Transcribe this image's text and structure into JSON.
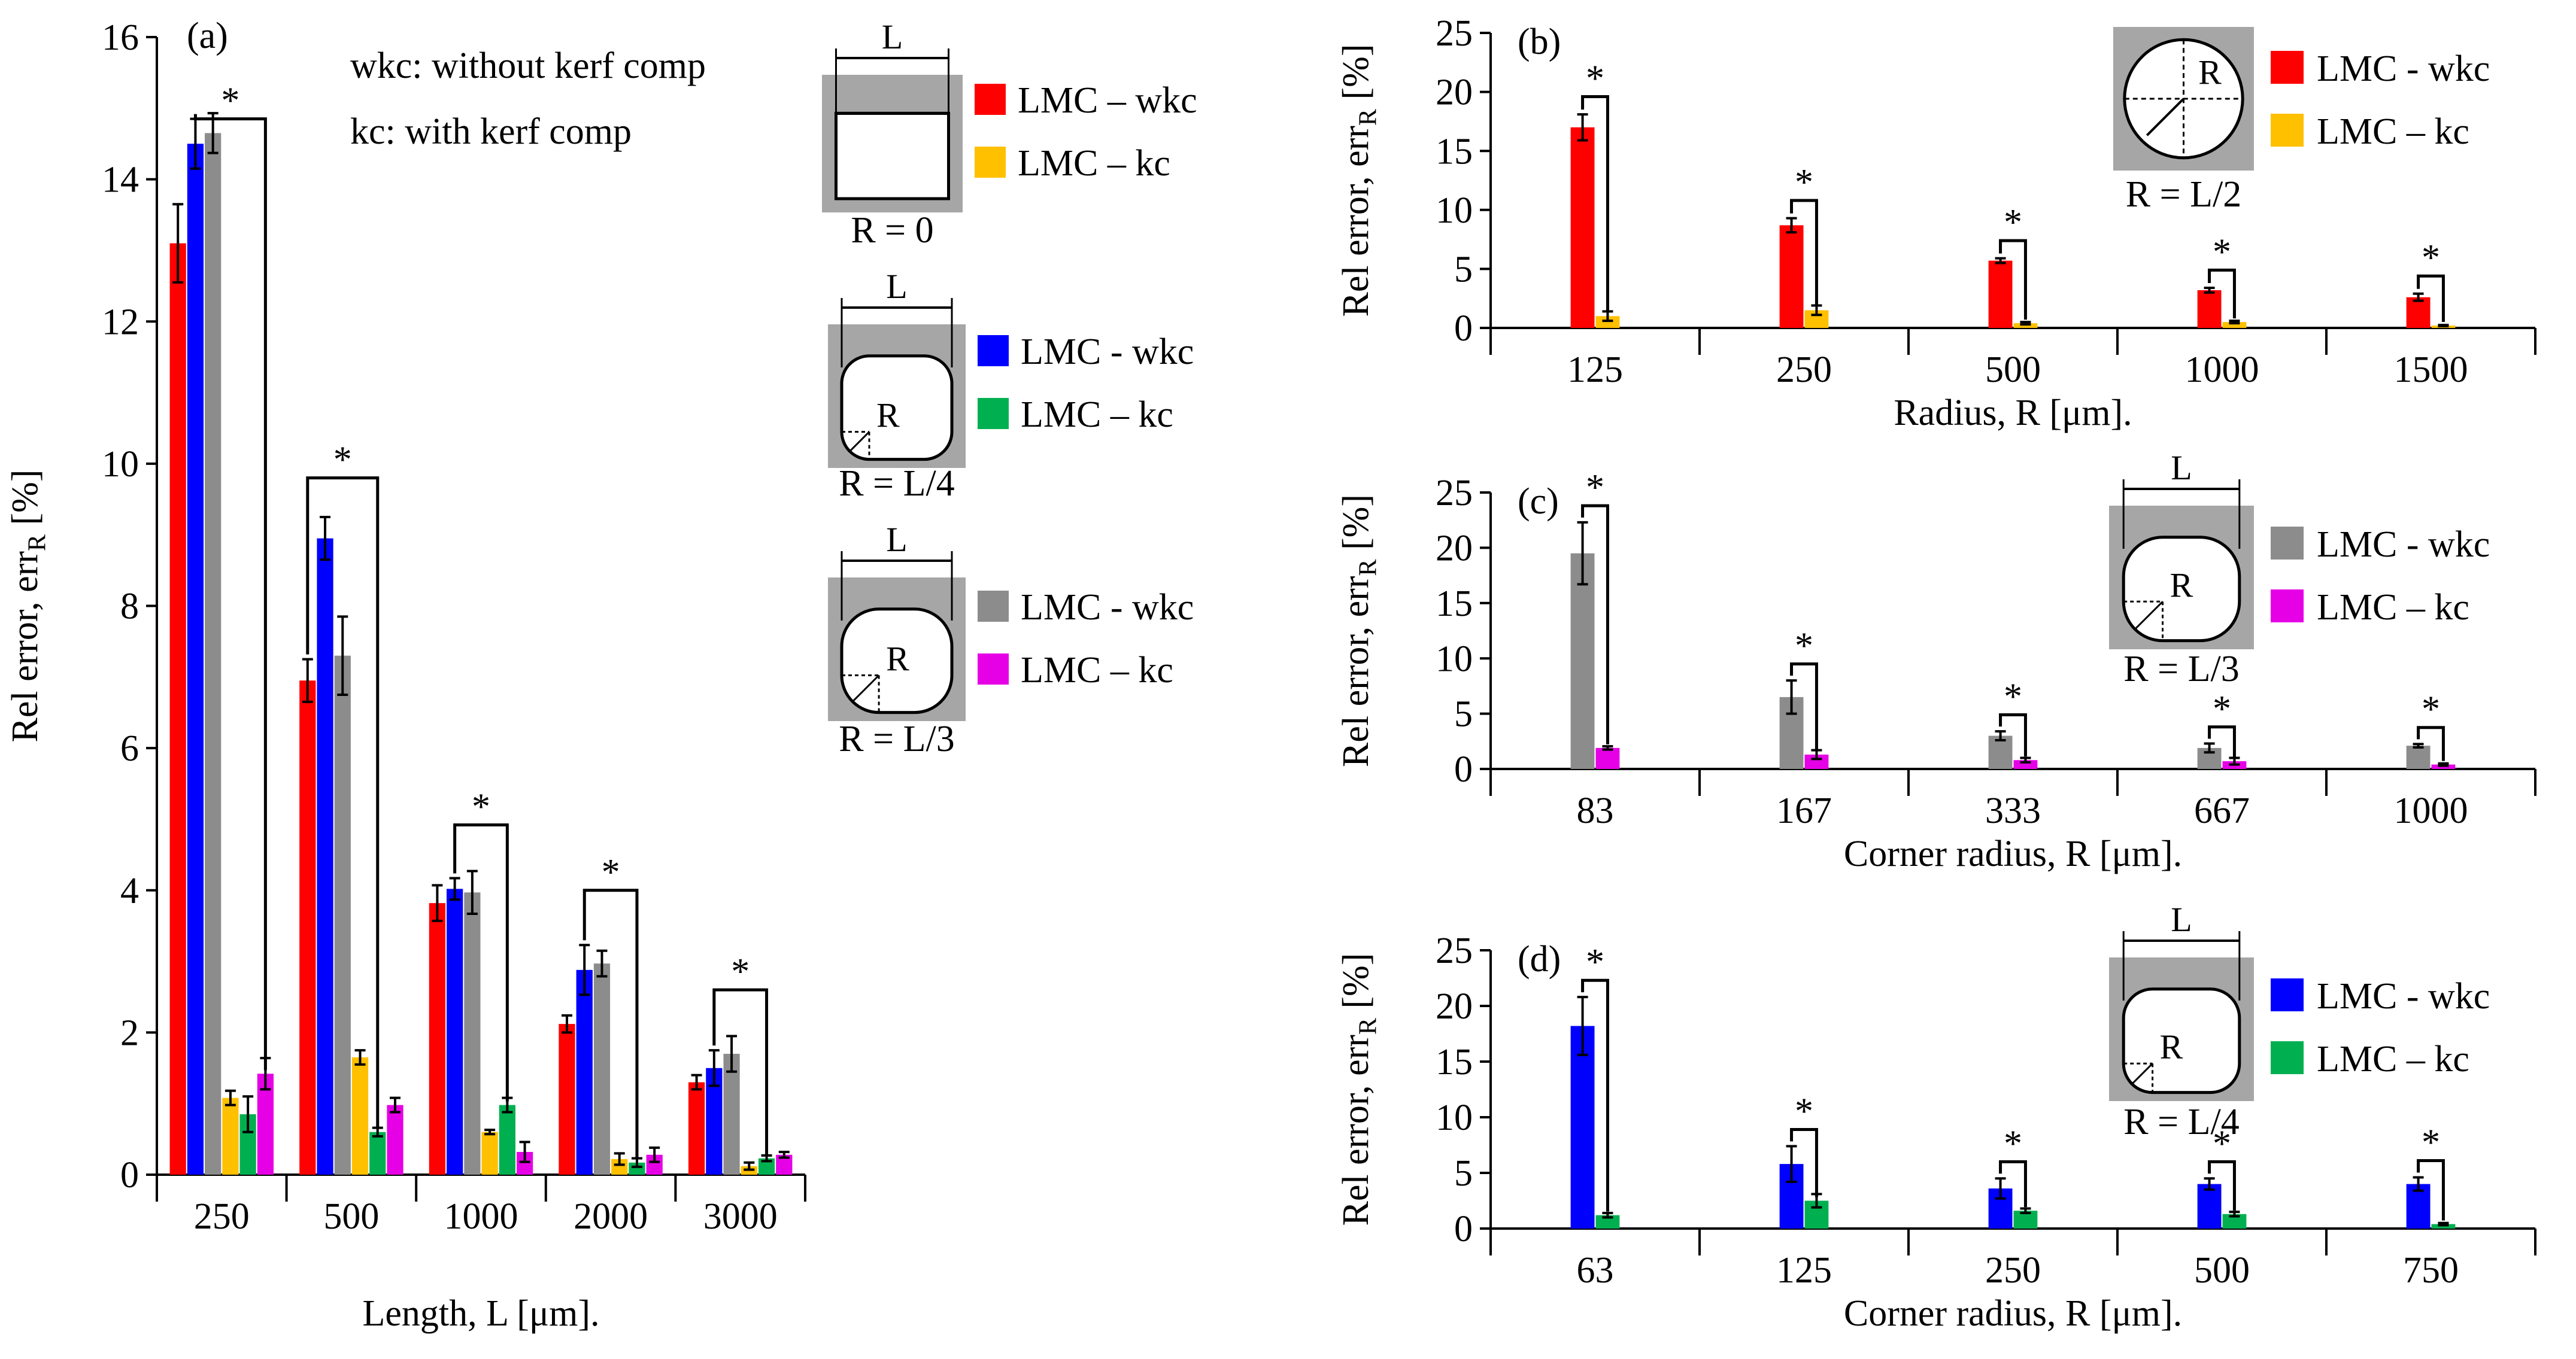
{
  "colors": {
    "red": "#ff0000",
    "blue": "#0000ff",
    "gray": "#8c8c8c",
    "yellow": "#ffc000",
    "green": "#00b050",
    "magenta": "#e600e6",
    "frame": "#a6a6a6"
  },
  "significance_marker": "*",
  "chart_data": [
    {
      "id": "a",
      "panel_label": "(a)",
      "type": "bar",
      "xlabel": "Length, L [μm].",
      "ylabel": "Rel error, err",
      "ylabel_sub": "R",
      "ylabel_unit": " [%]",
      "ylim": [
        0,
        16
      ],
      "yticks": [
        "0",
        "2",
        "4",
        "6",
        "8",
        "10",
        "12",
        "14",
        "16"
      ],
      "categories": [
        "250",
        "500",
        "1000",
        "2000",
        "3000"
      ],
      "notes": [
        "wkc: without kerf comp",
        "kc: with kerf comp"
      ],
      "series": [
        {
          "name": "LMC – wkc",
          "color": "red",
          "values": [
            13.1,
            6.95,
            3.82,
            2.12,
            1.3
          ],
          "errors": [
            0.55,
            0.3,
            0.25,
            0.12,
            0.1
          ]
        },
        {
          "name": "LMC - wkc",
          "color": "blue",
          "values": [
            14.5,
            8.95,
            4.02,
            2.88,
            1.5
          ],
          "errors": [
            0.35,
            0.3,
            0.15,
            0.35,
            0.25
          ]
        },
        {
          "name": "LMC - wkc",
          "color": "gray",
          "values": [
            14.65,
            7.3,
            3.97,
            2.97,
            1.7
          ],
          "errors": [
            0.28,
            0.55,
            0.3,
            0.18,
            0.25
          ]
        },
        {
          "name": "LMC – kc",
          "color": "yellow",
          "values": [
            1.08,
            1.65,
            0.6,
            0.22,
            0.12
          ],
          "errors": [
            0.1,
            0.1,
            0.03,
            0.08,
            0.05
          ]
        },
        {
          "name": "LMC – kc",
          "color": "green",
          "values": [
            0.85,
            0.6,
            0.98,
            0.17,
            0.23
          ],
          "errors": [
            0.25,
            0.06,
            0.1,
            0.06,
            0.04
          ]
        },
        {
          "name": "LMC – kc",
          "color": "magenta",
          "values": [
            1.42,
            0.98,
            0.32,
            0.28,
            0.28
          ],
          "errors": [
            0.22,
            0.1,
            0.14,
            0.1,
            0.04
          ]
        }
      ],
      "legend_groups": [
        {
          "caption": "R = 0",
          "shape": "open",
          "entries": [
            {
              "label": "LMC – wkc",
              "color": "red"
            },
            {
              "label": "LMC – kc",
              "color": "yellow"
            }
          ]
        },
        {
          "caption": "R = L/4",
          "shape": "rounded4",
          "entries": [
            {
              "label": "LMC - wkc",
              "color": "blue"
            },
            {
              "label": "LMC – kc",
              "color": "green"
            }
          ]
        },
        {
          "caption": "R = L/3",
          "shape": "rounded3",
          "entries": [
            {
              "label": "LMC - wkc",
              "color": "gray"
            },
            {
              "label": "LMC – kc",
              "color": "magenta"
            }
          ]
        }
      ],
      "shape_labels": {
        "length": "L",
        "radius": "R"
      }
    },
    {
      "id": "b",
      "panel_label": "(b)",
      "type": "bar",
      "xlabel": "Radius, R [μm].",
      "ylabel": "Rel error, err",
      "ylabel_sub": "R",
      "ylabel_unit": " [%]",
      "ylim": [
        0,
        25
      ],
      "yticks": [
        "0",
        "5",
        "10",
        "15",
        "20",
        "25"
      ],
      "categories": [
        "125",
        "250",
        "500",
        "1000",
        "1500"
      ],
      "series": [
        {
          "name": "LMC - wkc",
          "color": "red",
          "values": [
            17.0,
            8.7,
            5.7,
            3.2,
            2.6
          ],
          "errors": [
            1.1,
            0.6,
            0.2,
            0.2,
            0.3
          ]
        },
        {
          "name": "LMC – kc",
          "color": "yellow",
          "values": [
            1.0,
            1.5,
            0.4,
            0.5,
            0.2
          ],
          "errors": [
            0.4,
            0.4,
            0.1,
            0.1,
            0.05
          ]
        }
      ],
      "legend_groups": [
        {
          "caption": "R = L/2",
          "shape": "circle",
          "entries": [
            {
              "label": "LMC - wkc",
              "color": "red"
            },
            {
              "label": "LMC – kc",
              "color": "yellow"
            }
          ]
        }
      ],
      "shape_labels": {
        "radius": "R"
      }
    },
    {
      "id": "c",
      "panel_label": "(c)",
      "type": "bar",
      "xlabel": "Corner radius, R [μm].",
      "ylabel": "Rel error, err",
      "ylabel_sub": "R",
      "ylabel_unit": " [%]",
      "ylim": [
        0,
        25
      ],
      "yticks": [
        "0",
        "5",
        "10",
        "15",
        "20",
        "25"
      ],
      "categories": [
        "83",
        "167",
        "333",
        "667",
        "1000"
      ],
      "series": [
        {
          "name": "LMC - wkc",
          "color": "gray",
          "values": [
            19.5,
            6.5,
            3.0,
            1.9,
            2.1
          ],
          "errors": [
            2.8,
            1.5,
            0.4,
            0.4,
            0.15
          ]
        },
        {
          "name": "LMC – kc",
          "color": "magenta",
          "values": [
            1.9,
            1.3,
            0.8,
            0.7,
            0.4
          ],
          "errors": [
            0.15,
            0.4,
            0.2,
            0.3,
            0.1
          ]
        }
      ],
      "legend_groups": [
        {
          "caption": "R = L/3",
          "shape": "rounded3",
          "entries": [
            {
              "label": "LMC - wkc",
              "color": "gray"
            },
            {
              "label": "LMC – kc",
              "color": "magenta"
            }
          ]
        }
      ],
      "shape_labels": {
        "length": "L",
        "radius": "R"
      }
    },
    {
      "id": "d",
      "panel_label": "(d)",
      "type": "bar",
      "xlabel": "Corner radius, R [μm].",
      "ylabel": "Rel error, err",
      "ylabel_sub": "R",
      "ylabel_unit": " [%]",
      "ylim": [
        0,
        25
      ],
      "yticks": [
        "0",
        "5",
        "10",
        "15",
        "20",
        "25"
      ],
      "categories": [
        "63",
        "125",
        "250",
        "500",
        "750"
      ],
      "series": [
        {
          "name": "LMC - wkc",
          "color": "blue",
          "values": [
            18.2,
            5.8,
            3.6,
            4.0,
            4.0
          ],
          "errors": [
            2.6,
            1.6,
            0.9,
            0.5,
            0.6
          ]
        },
        {
          "name": "LMC – kc",
          "color": "green",
          "values": [
            1.2,
            2.5,
            1.6,
            1.3,
            0.4
          ],
          "errors": [
            0.2,
            0.6,
            0.2,
            0.2,
            0.1
          ]
        }
      ],
      "legend_groups": [
        {
          "caption": "R = L/4",
          "shape": "rounded4",
          "entries": [
            {
              "label": "LMC - wkc",
              "color": "blue"
            },
            {
              "label": "LMC – kc",
              "color": "green"
            }
          ]
        }
      ],
      "shape_labels": {
        "length": "L",
        "radius": "R"
      }
    }
  ]
}
